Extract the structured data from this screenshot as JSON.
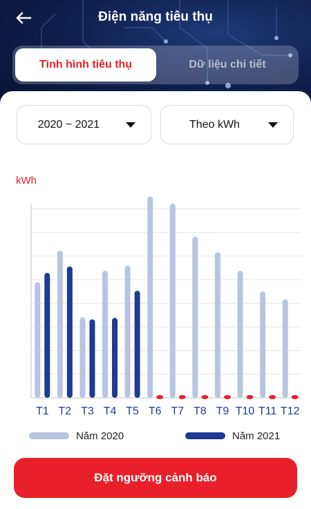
{
  "header": {
    "title": "Điện năng tiêu thụ",
    "back_icon": "arrow-left-icon"
  },
  "tabs": [
    {
      "label": "Tình hình tiêu thụ",
      "active": true
    },
    {
      "label": "Dữ liệu chi tiết",
      "active": false
    }
  ],
  "filters": {
    "period": "2020 ~ 2021",
    "unit": "Theo kWh"
  },
  "chart_data": {
    "type": "bar",
    "ylabel": "kWh",
    "categories": [
      "T1",
      "T2",
      "T3",
      "T4",
      "T5",
      "T6",
      "T7",
      "T8",
      "T9",
      "T10",
      "T11",
      "T12"
    ],
    "series": [
      {
        "name": "Năm 2020",
        "color": "#b7c5e0",
        "values": [
          162,
          206,
          113,
          178,
          185,
          282,
          272,
          226,
          204,
          178,
          149,
          138
        ]
      },
      {
        "name": "Năm 2021",
        "color": "#1f3a93",
        "values": [
          175,
          184,
          110,
          112,
          150,
          0,
          0,
          0,
          0,
          0,
          0,
          0
        ]
      }
    ],
    "zero_marker_color": "#e8202a",
    "grid": true
  },
  "cta": {
    "label": "Đặt ngưỡng cảnh báo"
  },
  "colors": {
    "accent": "#e8202a",
    "header_bg": "#0f2150"
  }
}
